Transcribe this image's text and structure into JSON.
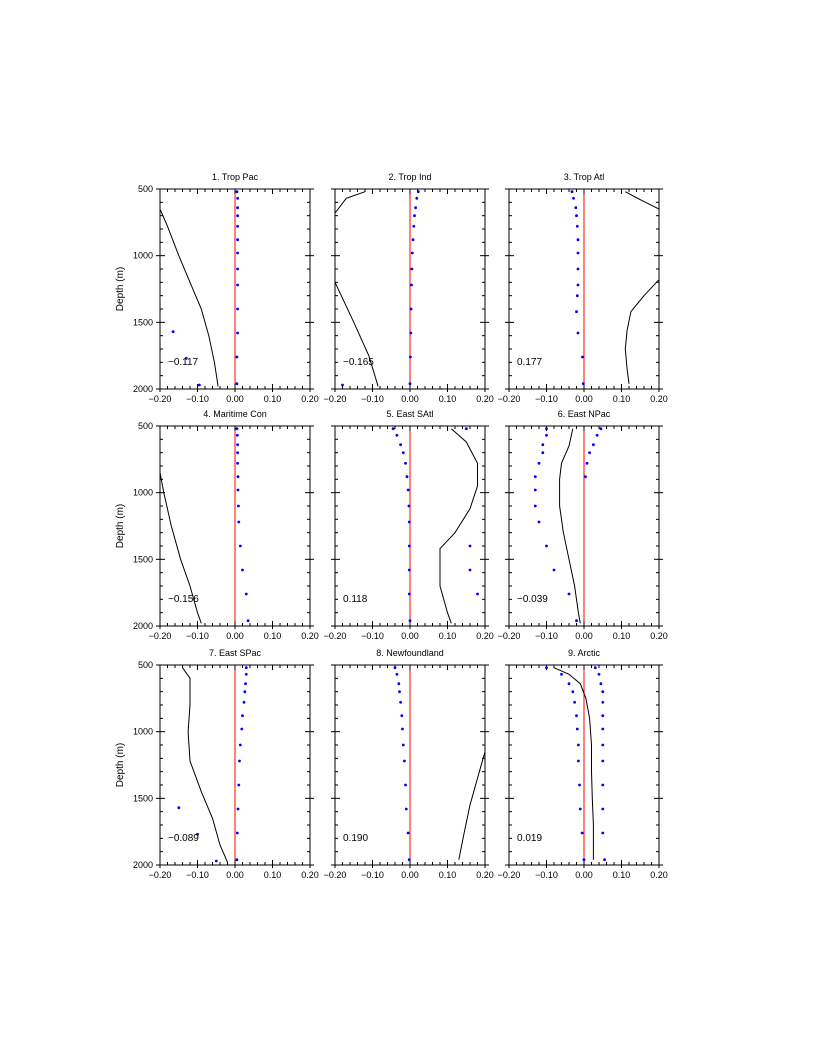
{
  "figure": {
    "ylabel": "Depth (m)",
    "xtick_labels": [
      "−0.20",
      "−0.10",
      "0.00",
      "0.10",
      "0.20"
    ],
    "ytick_labels": [
      "500",
      "1000",
      "1500",
      "2000"
    ],
    "colors": {
      "curve": "#000000",
      "dots": "#0000ff",
      "zero_line": "#ff0000",
      "frame": "#000000"
    }
  },
  "chart_data": [
    {
      "type": "line",
      "title": "1. Trop Pac",
      "annotation": "−0.117",
      "xlim": [
        -0.2,
        0.2
      ],
      "ylim": [
        500,
        2000
      ],
      "y_inverted": true,
      "grid": false,
      "line": [
        [
          -0.2,
          650
        ],
        [
          -0.18,
          780
        ],
        [
          -0.15,
          1000
        ],
        [
          -0.12,
          1200
        ],
        [
          -0.09,
          1400
        ],
        [
          -0.07,
          1600
        ],
        [
          -0.055,
          1800
        ],
        [
          -0.045,
          1980
        ]
      ],
      "dots": [
        [
          0.005,
          520
        ],
        [
          0.007,
          570
        ],
        [
          0.007,
          640
        ],
        [
          0.007,
          700
        ],
        [
          0.007,
          780
        ],
        [
          0.007,
          880
        ],
        [
          0.007,
          980
        ],
        [
          0.007,
          1100
        ],
        [
          0.007,
          1220
        ],
        [
          0.007,
          1400
        ],
        [
          0.007,
          1580
        ],
        [
          0.005,
          1760
        ],
        [
          0.005,
          1960
        ],
        [
          -0.165,
          1570
        ],
        [
          -0.13,
          1770
        ],
        [
          -0.095,
          1970
        ]
      ]
    },
    {
      "type": "line",
      "title": "2. Trop Ind",
      "annotation": "−0.165",
      "xlim": [
        -0.2,
        0.2
      ],
      "ylim": [
        500,
        2000
      ],
      "y_inverted": true,
      "grid": false,
      "line": [
        [
          -0.12,
          520
        ],
        [
          -0.17,
          570
        ],
        [
          -0.2,
          680
        ],
        [
          -0.2,
          1200
        ],
        [
          -0.15,
          1500
        ],
        [
          -0.11,
          1750
        ],
        [
          -0.085,
          1980
        ]
      ],
      "dots": [
        [
          0.022,
          520
        ],
        [
          0.018,
          570
        ],
        [
          0.015,
          640
        ],
        [
          0.012,
          700
        ],
        [
          0.01,
          780
        ],
        [
          0.008,
          880
        ],
        [
          0.006,
          980
        ],
        [
          0.005,
          1100
        ],
        [
          0.004,
          1220
        ],
        [
          0.003,
          1400
        ],
        [
          0.002,
          1580
        ],
        [
          0.001,
          1760
        ],
        [
          0.0,
          1960
        ],
        [
          -0.18,
          1970
        ]
      ]
    },
    {
      "type": "line",
      "title": "3. Trop Atl",
      "annotation": "0.177",
      "xlim": [
        -0.2,
        0.2
      ],
      "ylim": [
        500,
        2000
      ],
      "y_inverted": true,
      "grid": false,
      "line": [
        [
          0.11,
          520
        ],
        [
          0.15,
          580
        ],
        [
          0.2,
          650
        ],
        [
          0.2,
          1180
        ],
        [
          0.16,
          1300
        ],
        [
          0.125,
          1420
        ],
        [
          0.115,
          1560
        ],
        [
          0.11,
          1700
        ],
        [
          0.115,
          1850
        ],
        [
          0.12,
          1960
        ]
      ],
      "dots": [
        [
          -0.032,
          520
        ],
        [
          -0.028,
          570
        ],
        [
          -0.022,
          640
        ],
        [
          -0.02,
          700
        ],
        [
          -0.018,
          780
        ],
        [
          -0.016,
          880
        ],
        [
          -0.016,
          980
        ],
        [
          -0.016,
          1100
        ],
        [
          -0.016,
          1220
        ],
        [
          -0.018,
          1300
        ],
        [
          -0.02,
          1420
        ],
        [
          -0.016,
          1580
        ],
        [
          -0.004,
          1760
        ],
        [
          -0.002,
          1960
        ]
      ]
    },
    {
      "type": "line",
      "title": "4. Maritime Con",
      "annotation": "−0.156",
      "xlim": [
        -0.2,
        0.2
      ],
      "ylim": [
        500,
        2000
      ],
      "y_inverted": true,
      "grid": false,
      "line": [
        [
          -0.2,
          850
        ],
        [
          -0.19,
          1000
        ],
        [
          -0.17,
          1250
        ],
        [
          -0.145,
          1500
        ],
        [
          -0.12,
          1700
        ],
        [
          -0.1,
          1900
        ],
        [
          -0.09,
          1980
        ]
      ],
      "dots": [
        [
          0.005,
          520
        ],
        [
          0.006,
          570
        ],
        [
          0.007,
          640
        ],
        [
          0.007,
          700
        ],
        [
          0.007,
          780
        ],
        [
          0.008,
          880
        ],
        [
          0.008,
          980
        ],
        [
          0.009,
          1100
        ],
        [
          0.01,
          1220
        ],
        [
          0.014,
          1400
        ],
        [
          0.02,
          1580
        ],
        [
          0.03,
          1760
        ],
        [
          0.035,
          1960
        ]
      ]
    },
    {
      "type": "line",
      "title": "5. East SAtl",
      "annotation": "0.118",
      "xlim": [
        -0.2,
        0.2
      ],
      "ylim": [
        500,
        2000
      ],
      "y_inverted": true,
      "grid": false,
      "line": [
        [
          0.11,
          520
        ],
        [
          0.15,
          620
        ],
        [
          0.18,
          780
        ],
        [
          0.18,
          950
        ],
        [
          0.16,
          1120
        ],
        [
          0.12,
          1300
        ],
        [
          0.08,
          1420
        ],
        [
          0.08,
          1560
        ],
        [
          0.08,
          1700
        ],
        [
          0.1,
          1900
        ],
        [
          0.11,
          1980
        ]
      ],
      "dots": [
        [
          -0.045,
          520
        ],
        [
          -0.035,
          570
        ],
        [
          -0.025,
          640
        ],
        [
          -0.018,
          700
        ],
        [
          -0.012,
          780
        ],
        [
          -0.008,
          880
        ],
        [
          -0.005,
          980
        ],
        [
          -0.003,
          1100
        ],
        [
          -0.002,
          1220
        ],
        [
          -0.002,
          1400
        ],
        [
          -0.002,
          1580
        ],
        [
          -0.002,
          1760
        ],
        [
          0.0,
          1960
        ],
        [
          0.15,
          520
        ],
        [
          0.16,
          1400
        ],
        [
          0.16,
          1580
        ],
        [
          0.18,
          1760
        ]
      ]
    },
    {
      "type": "line",
      "title": "6. East NPac",
      "annotation": "−0.039",
      "xlim": [
        -0.2,
        0.2
      ],
      "ylim": [
        500,
        2000
      ],
      "y_inverted": true,
      "grid": false,
      "line": [
        [
          -0.03,
          520
        ],
        [
          -0.04,
          650
        ],
        [
          -0.06,
          780
        ],
        [
          -0.065,
          900
        ],
        [
          -0.065,
          1100
        ],
        [
          -0.055,
          1300
        ],
        [
          -0.04,
          1500
        ],
        [
          -0.025,
          1700
        ],
        [
          -0.015,
          1900
        ],
        [
          -0.01,
          1980
        ]
      ],
      "dots": [
        [
          -0.1,
          520
        ],
        [
          -0.1,
          570
        ],
        [
          -0.11,
          640
        ],
        [
          -0.11,
          700
        ],
        [
          -0.12,
          780
        ],
        [
          -0.13,
          880
        ],
        [
          -0.13,
          980
        ],
        [
          -0.13,
          1100
        ],
        [
          -0.12,
          1220
        ],
        [
          -0.1,
          1400
        ],
        [
          -0.08,
          1580
        ],
        [
          -0.04,
          1760
        ],
        [
          -0.02,
          1960
        ],
        [
          0.045,
          520
        ],
        [
          0.035,
          570
        ],
        [
          0.025,
          640
        ],
        [
          0.015,
          700
        ],
        [
          0.008,
          780
        ],
        [
          0.004,
          880
        ]
      ]
    },
    {
      "type": "line",
      "title": "7. East SPac",
      "annotation": "−0.089",
      "xlim": [
        -0.2,
        0.2
      ],
      "ylim": [
        500,
        2000
      ],
      "y_inverted": true,
      "grid": false,
      "line": [
        [
          -0.14,
          520
        ],
        [
          -0.12,
          600
        ],
        [
          -0.12,
          800
        ],
        [
          -0.125,
          1000
        ],
        [
          -0.12,
          1220
        ],
        [
          -0.09,
          1450
        ],
        [
          -0.06,
          1650
        ],
        [
          -0.04,
          1850
        ],
        [
          -0.02,
          1980
        ]
      ],
      "dots": [
        [
          0.03,
          520
        ],
        [
          0.03,
          570
        ],
        [
          0.028,
          640
        ],
        [
          0.026,
          700
        ],
        [
          0.024,
          780
        ],
        [
          0.02,
          880
        ],
        [
          0.018,
          980
        ],
        [
          0.014,
          1100
        ],
        [
          0.012,
          1220
        ],
        [
          0.01,
          1400
        ],
        [
          0.008,
          1580
        ],
        [
          0.006,
          1760
        ],
        [
          0.005,
          1960
        ],
        [
          -0.15,
          1570
        ],
        [
          -0.1,
          1770
        ],
        [
          -0.05,
          1970
        ]
      ]
    },
    {
      "type": "line",
      "title": "8. Newfoundland",
      "annotation": "0.190",
      "xlim": [
        -0.2,
        0.2
      ],
      "ylim": [
        500,
        2000
      ],
      "y_inverted": true,
      "grid": false,
      "line": [
        [
          0.2,
          1150
        ],
        [
          0.18,
          1350
        ],
        [
          0.16,
          1550
        ],
        [
          0.145,
          1750
        ],
        [
          0.13,
          1960
        ]
      ],
      "dots": [
        [
          -0.04,
          520
        ],
        [
          -0.035,
          570
        ],
        [
          -0.03,
          640
        ],
        [
          -0.028,
          700
        ],
        [
          -0.025,
          780
        ],
        [
          -0.022,
          880
        ],
        [
          -0.02,
          980
        ],
        [
          -0.018,
          1100
        ],
        [
          -0.015,
          1220
        ],
        [
          -0.012,
          1400
        ],
        [
          -0.01,
          1580
        ],
        [
          -0.005,
          1760
        ],
        [
          -0.002,
          1960
        ]
      ]
    },
    {
      "type": "line",
      "title": "9. Arctic",
      "annotation": "0.019",
      "xlim": [
        -0.2,
        0.2
      ],
      "ylim": [
        500,
        2000
      ],
      "y_inverted": true,
      "grid": false,
      "line": [
        [
          -0.08,
          520
        ],
        [
          -0.04,
          570
        ],
        [
          -0.01,
          640
        ],
        [
          0.005,
          750
        ],
        [
          0.015,
          900
        ],
        [
          0.02,
          1100
        ],
        [
          0.02,
          1300
        ],
        [
          0.022,
          1500
        ],
        [
          0.025,
          1700
        ],
        [
          0.025,
          1960
        ]
      ],
      "dots": [
        [
          -0.1,
          520
        ],
        [
          -0.06,
          570
        ],
        [
          -0.04,
          640
        ],
        [
          -0.03,
          700
        ],
        [
          -0.025,
          780
        ],
        [
          -0.02,
          880
        ],
        [
          -0.018,
          980
        ],
        [
          -0.015,
          1100
        ],
        [
          -0.015,
          1220
        ],
        [
          -0.012,
          1400
        ],
        [
          -0.01,
          1580
        ],
        [
          -0.005,
          1760
        ],
        [
          0.0,
          1960
        ],
        [
          0.03,
          520
        ],
        [
          0.04,
          570
        ],
        [
          0.045,
          640
        ],
        [
          0.05,
          700
        ],
        [
          0.05,
          780
        ],
        [
          0.05,
          880
        ],
        [
          0.05,
          980
        ],
        [
          0.05,
          1100
        ],
        [
          0.05,
          1220
        ],
        [
          0.05,
          1400
        ],
        [
          0.05,
          1580
        ],
        [
          0.05,
          1760
        ],
        [
          0.055,
          1960
        ]
      ]
    }
  ]
}
